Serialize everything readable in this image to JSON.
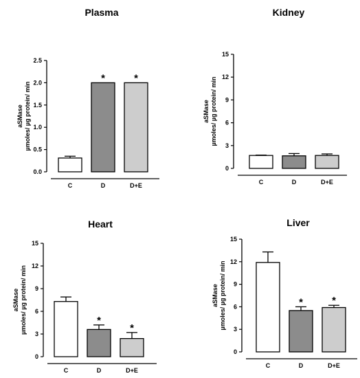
{
  "chart_data": [
    {
      "type": "bar",
      "title": "Plasma",
      "ylabel_line1": "aSMase",
      "ylabel_line2": "µmoles/ µg protein/ min",
      "categories": [
        "C",
        "D",
        "D+E"
      ],
      "values": [
        0.31,
        2.0,
        2.0
      ],
      "errors": [
        0.04,
        0.0,
        0.0
      ],
      "significance": [
        "",
        "*",
        "*"
      ],
      "ylim": [
        0,
        2.5
      ],
      "yticks": [
        "0.0",
        "0.5",
        "1.0",
        "1.5",
        "2.0",
        "2.5"
      ],
      "bar_colors": [
        "#ffffff",
        "#8c8c8c",
        "#cdcdcd"
      ]
    },
    {
      "type": "bar",
      "title": "Kidney",
      "ylabel_line1": "aSMase",
      "ylabel_line2": "µmoles/ µg protein/ min",
      "categories": [
        "C",
        "D",
        "D+E"
      ],
      "values": [
        1.7,
        1.65,
        1.7
      ],
      "errors": [
        0.05,
        0.3,
        0.2
      ],
      "significance": [
        "",
        "",
        ""
      ],
      "ylim": [
        0,
        15
      ],
      "yticks": [
        "0",
        "3",
        "6",
        "9",
        "12",
        "15"
      ],
      "bar_colors": [
        "#ffffff",
        "#8c8c8c",
        "#cdcdcd"
      ]
    },
    {
      "type": "bar",
      "title": "Heart",
      "ylabel_line1": "aSMase",
      "ylabel_line2": "µmoles/ µg protein/ min",
      "categories": [
        "C",
        "D",
        "D+E"
      ],
      "values": [
        7.3,
        3.6,
        2.4
      ],
      "errors": [
        0.6,
        0.6,
        0.8
      ],
      "significance": [
        "",
        "*",
        "*"
      ],
      "ylim": [
        0,
        15
      ],
      "yticks": [
        "0",
        "3",
        "6",
        "9",
        "12",
        "15"
      ],
      "bar_colors": [
        "#ffffff",
        "#8c8c8c",
        "#cdcdcd"
      ]
    },
    {
      "type": "bar",
      "title": "Liver",
      "ylabel_line1": "aSMase",
      "ylabel_line2": "µmoles/ µg protein/ min",
      "categories": [
        "C",
        "D",
        "D+E"
      ],
      "values": [
        11.9,
        5.5,
        5.9
      ],
      "errors": [
        1.4,
        0.5,
        0.3
      ],
      "significance": [
        "",
        "*",
        "*"
      ],
      "ylim": [
        0,
        15
      ],
      "yticks": [
        "0",
        "3",
        "6",
        "9",
        "12",
        "15"
      ],
      "bar_colors": [
        "#ffffff",
        "#8c8c8c",
        "#cdcdcd"
      ]
    }
  ]
}
